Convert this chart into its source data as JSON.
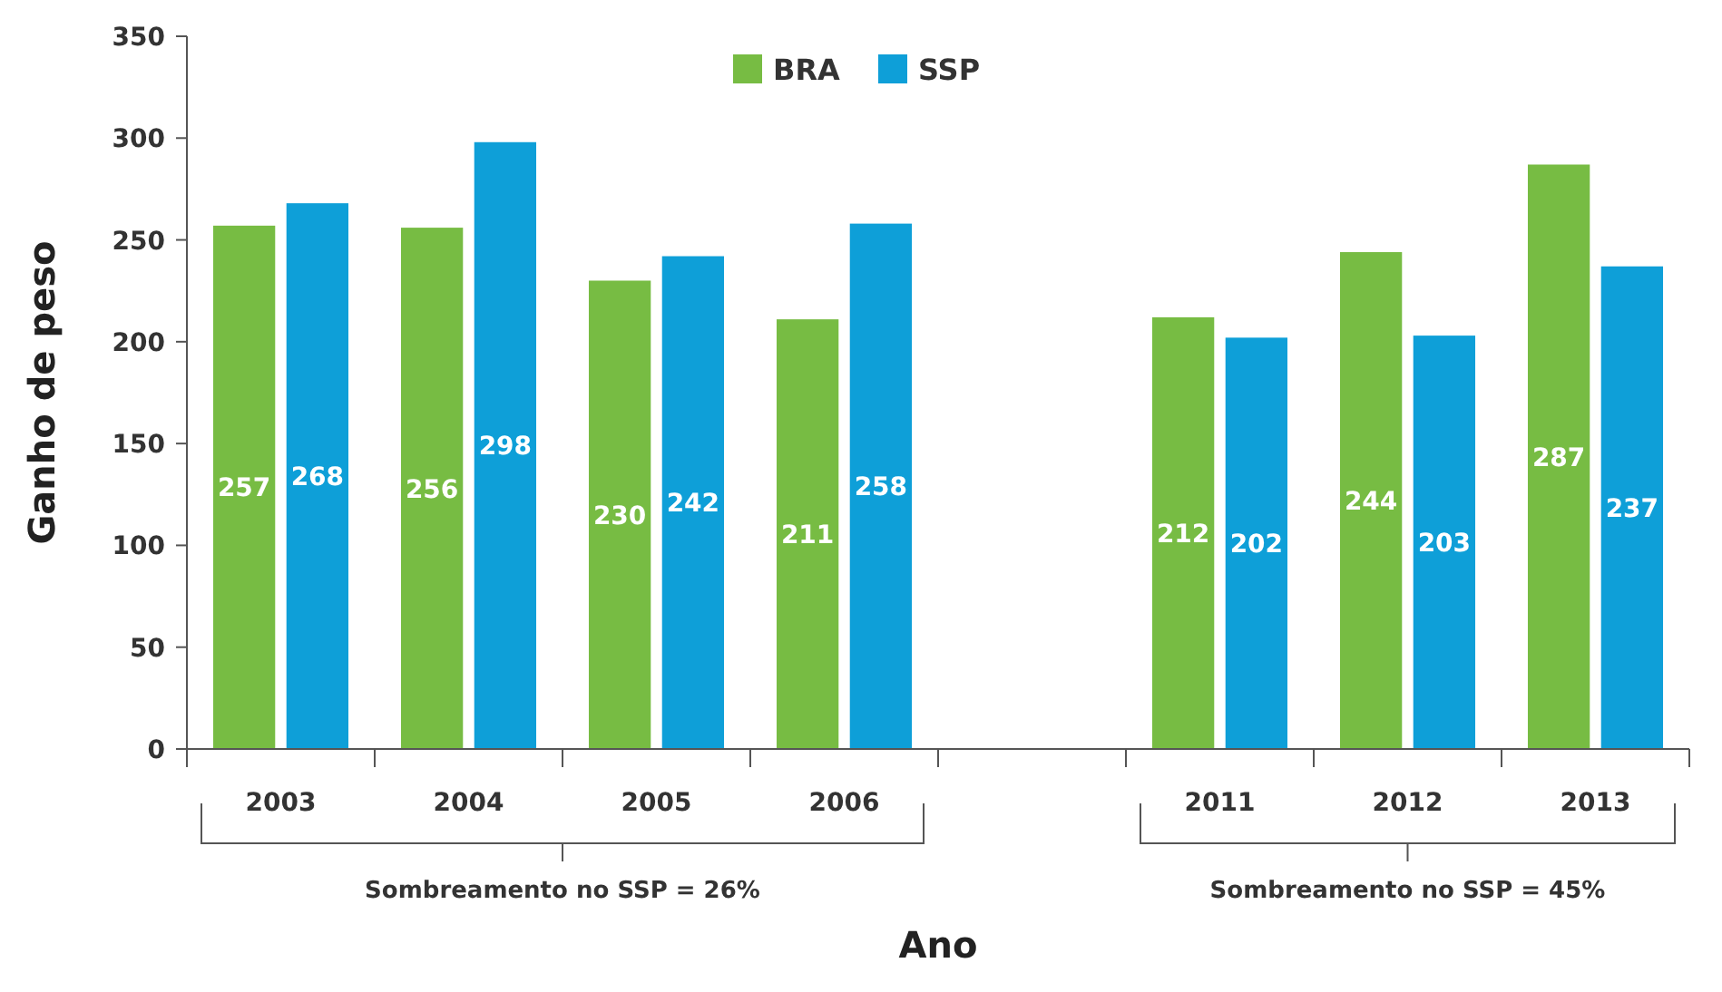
{
  "chart_data": {
    "type": "bar",
    "xlabel": "Ano",
    "ylabel": "Ganho de peso",
    "categories": [
      "2003",
      "2004",
      "2005",
      "2006",
      null,
      "2011",
      "2012",
      "2013"
    ],
    "series": [
      {
        "name": "BRA",
        "color": "#77bc43",
        "values": [
          257,
          256,
          230,
          211,
          null,
          212,
          244,
          287
        ]
      },
      {
        "name": "SSP",
        "color": "#0e9fd8",
        "values": [
          268,
          298,
          242,
          258,
          null,
          202,
          203,
          237
        ]
      }
    ],
    "ylim": [
      0,
      350
    ],
    "yticks": [
      0,
      50,
      100,
      150,
      200,
      250,
      300,
      350
    ],
    "data_labels": true,
    "legend": "top",
    "grid": false,
    "annotations": [
      "Sombreamento no SSP = 26%",
      "Sombreamento no SSP = 45%"
    ]
  }
}
